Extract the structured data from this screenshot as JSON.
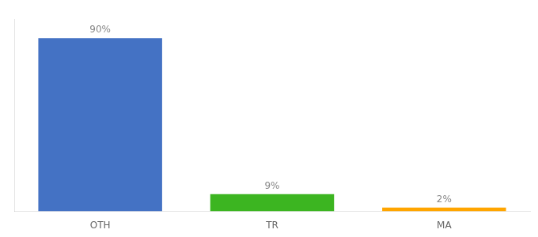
{
  "chart_data": {
    "type": "bar",
    "categories": [
      "OTH",
      "TR",
      "MA"
    ],
    "values": [
      90,
      9,
      2
    ],
    "colors": [
      "#4472C4",
      "#3cb521",
      "#FFA500"
    ],
    "data_labels": true,
    "value_labels": [
      "90%",
      "9%",
      "2%"
    ],
    "ylim": [
      0,
      100
    ],
    "grid": false,
    "tick_labels": "x"
  }
}
